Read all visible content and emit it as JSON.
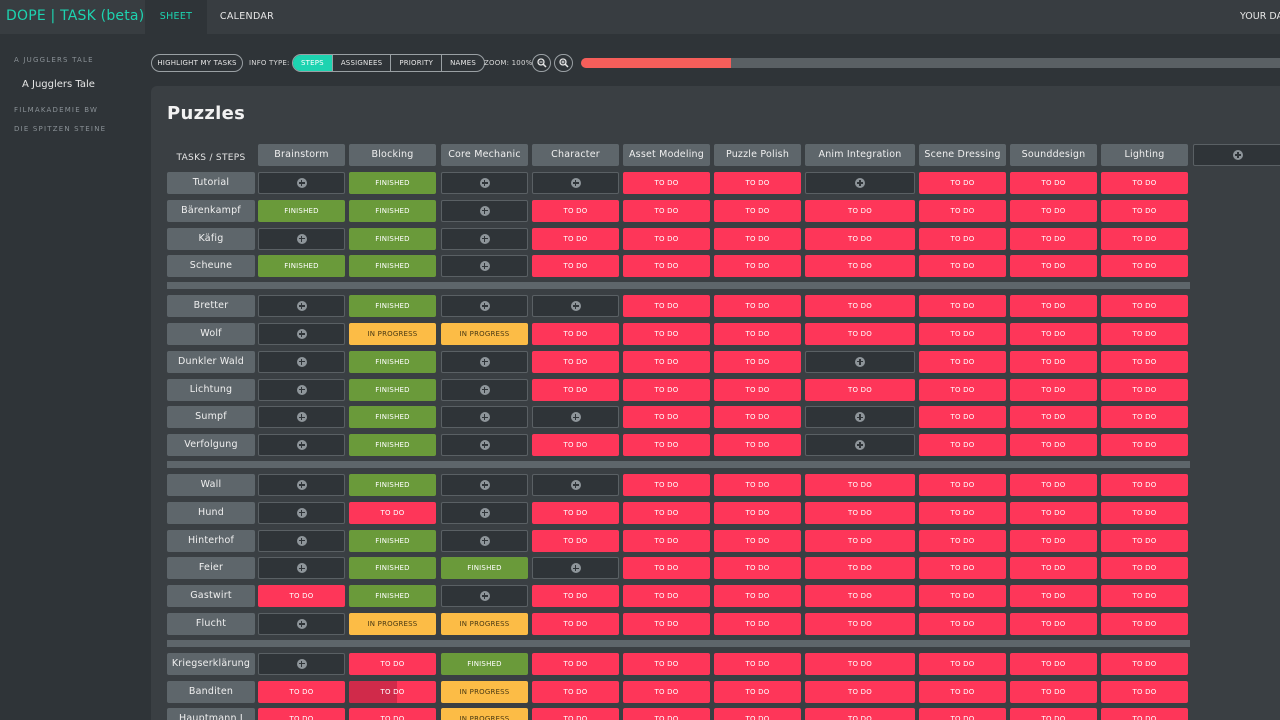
{
  "app": {
    "brand": "DOPE | TASK (beta)",
    "nav": [
      {
        "label": "SHEET",
        "active": true
      },
      {
        "label": "CALENDAR",
        "active": false
      }
    ],
    "right_link": "YOUR DA"
  },
  "sidebar": {
    "projects": [
      {
        "label": "A JUGGLERS TALE",
        "items": [
          "A Jugglers Tale"
        ]
      },
      {
        "label": "FILMAKADEMIE BW",
        "items": []
      },
      {
        "label": "DIE SPITZEN STEINE",
        "items": []
      }
    ]
  },
  "toolbar": {
    "highlight_label": "HIGHLIGHT MY TASKS",
    "info_type_label": "INFO TYPE:",
    "info_types": [
      {
        "label": "STEPS",
        "active": true
      },
      {
        "label": "ASSIGNEES",
        "active": false
      },
      {
        "label": "PRIORITY",
        "active": false
      },
      {
        "label": "NAMES",
        "active": false
      }
    ],
    "zoom_label": "ZOOM: 100%",
    "zoom_out_icon": "zoom-out-icon",
    "zoom_in_icon": "zoom-in-icon",
    "progress": 0.215,
    "progress_color": "#f65e5a"
  },
  "sheet": {
    "title": "Puzzles",
    "corner_label": "TASKS / STEPS",
    "steps": [
      "Brainstorm",
      "Blocking",
      "Core Mechanic",
      "Character",
      "Asset Modeling",
      "Puzzle Polish",
      "Anim Integration",
      "Scene Dressing",
      "Sounddesign",
      "Lighting"
    ],
    "status_labels": {
      "F": "FINISHED",
      "T": "TO DO",
      "P": "IN PROGRESS"
    },
    "status_colors": {
      "F": "#6a9a3a",
      "T": "#fe3659",
      "P": "#fcbc46"
    },
    "groups": [
      {
        "tasks": [
          {
            "name": "Tutorial",
            "cells": [
              "E",
              "F",
              "E",
              "E",
              "T",
              "T",
              "E",
              "T",
              "T",
              "T"
            ]
          },
          {
            "name": "Bärenkampf",
            "cells": [
              "F",
              "F",
              "E",
              "T",
              "T",
              "T",
              "T",
              "T",
              "T",
              "T"
            ]
          },
          {
            "name": "Käfig",
            "cells": [
              "E",
              "F",
              "E",
              "T",
              "T",
              "T",
              "T",
              "T",
              "T",
              "T"
            ]
          },
          {
            "name": "Scheune",
            "cells": [
              "F",
              "F",
              "E",
              "T",
              "T",
              "T",
              "T",
              "T",
              "T",
              "T"
            ]
          }
        ]
      },
      {
        "tasks": [
          {
            "name": "Bretter",
            "cells": [
              "E",
              "F",
              "E",
              "E",
              "T",
              "T",
              "T",
              "T",
              "T",
              "T"
            ]
          },
          {
            "name": "Wolf",
            "cells": [
              "E",
              "P",
              "P",
              "T",
              "T",
              "T",
              "T",
              "T",
              "T",
              "T"
            ]
          },
          {
            "name": "Dunkler Wald",
            "cells": [
              "E",
              "F",
              "E",
              "T",
              "T",
              "T",
              "E",
              "T",
              "T",
              "T"
            ]
          },
          {
            "name": "Lichtung",
            "cells": [
              "E",
              "F",
              "E",
              "T",
              "T",
              "T",
              "T",
              "T",
              "T",
              "T"
            ]
          },
          {
            "name": "Sumpf",
            "cells": [
              "E",
              "F",
              "E",
              "E",
              "T",
              "T",
              "E",
              "T",
              "T",
              "T"
            ]
          },
          {
            "name": "Verfolgung",
            "cells": [
              "E",
              "F",
              "E",
              "T",
              "T",
              "T",
              "E",
              "T",
              "T",
              "T"
            ]
          }
        ]
      },
      {
        "tasks": [
          {
            "name": "Wall",
            "cells": [
              "E",
              "F",
              "E",
              "E",
              "T",
              "T",
              "T",
              "T",
              "T",
              "T"
            ]
          },
          {
            "name": "Hund",
            "cells": [
              "E",
              "T",
              "E",
              "T",
              "T",
              "T",
              "T",
              "T",
              "T",
              "T"
            ]
          },
          {
            "name": "Hinterhof",
            "cells": [
              "E",
              "F",
              "E",
              "T",
              "T",
              "T",
              "T",
              "T",
              "T",
              "T"
            ]
          },
          {
            "name": "Feier",
            "cells": [
              "E",
              "F",
              "F",
              "E",
              "T",
              "T",
              "T",
              "T",
              "T",
              "T"
            ]
          },
          {
            "name": "Gastwirt",
            "cells": [
              "T",
              "F",
              "E",
              "T",
              "T",
              "T",
              "T",
              "T",
              "T",
              "T"
            ]
          },
          {
            "name": "Flucht",
            "cells": [
              "E",
              "P",
              "P",
              "T",
              "T",
              "T",
              "T",
              "T",
              "T",
              "T"
            ]
          }
        ]
      },
      {
        "tasks": [
          {
            "name": "Kriegserklärung",
            "cells": [
              "E",
              "T",
              "F",
              "T",
              "T",
              "T",
              "T",
              "T",
              "T",
              "T"
            ]
          },
          {
            "name": "Banditen",
            "cells": [
              "T",
              "T",
              "P",
              "T",
              "T",
              "T",
              "T",
              "T",
              "T",
              "T"
            ]
          },
          {
            "name": "Hauptmann I",
            "cells": [
              "T",
              "T",
              "P",
              "T",
              "T",
              "T",
              "T",
              "T",
              "T",
              "T"
            ]
          }
        ]
      }
    ],
    "highlighted_cell": {
      "task": "Banditen",
      "step": "Blocking",
      "fraction": 0.55
    }
  }
}
